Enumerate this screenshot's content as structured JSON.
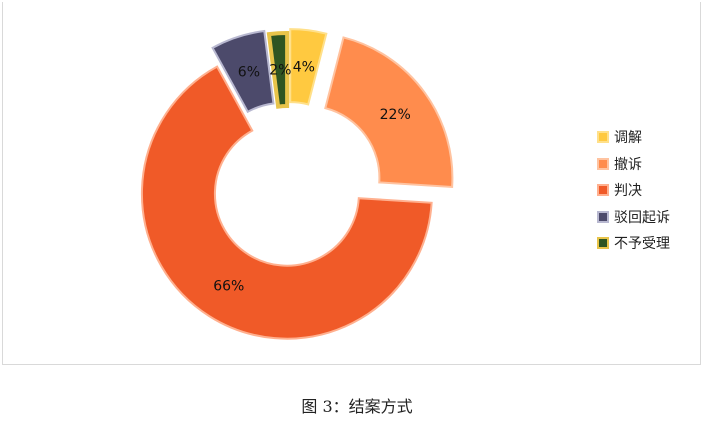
{
  "chart_data": {
    "type": "pie",
    "donut": true,
    "categories": [
      "调解",
      "撤诉",
      "判决",
      "驳回起诉",
      "不予受理"
    ],
    "values": [
      4,
      22,
      66,
      6,
      2
    ],
    "labels": [
      "4%",
      "22%",
      "66%",
      "6%",
      "2%"
    ],
    "colors": [
      "#ffc940",
      "#ff8c4d",
      "#f05a28",
      "#4c4a6b",
      "#2e5522"
    ],
    "border_colors": [
      "#ffe08a",
      "#ffc3a0",
      "#ffb08f",
      "#b8b8d0",
      "#e8c44a"
    ],
    "legend_position": "right"
  },
  "caption": "图 3：结案方式"
}
